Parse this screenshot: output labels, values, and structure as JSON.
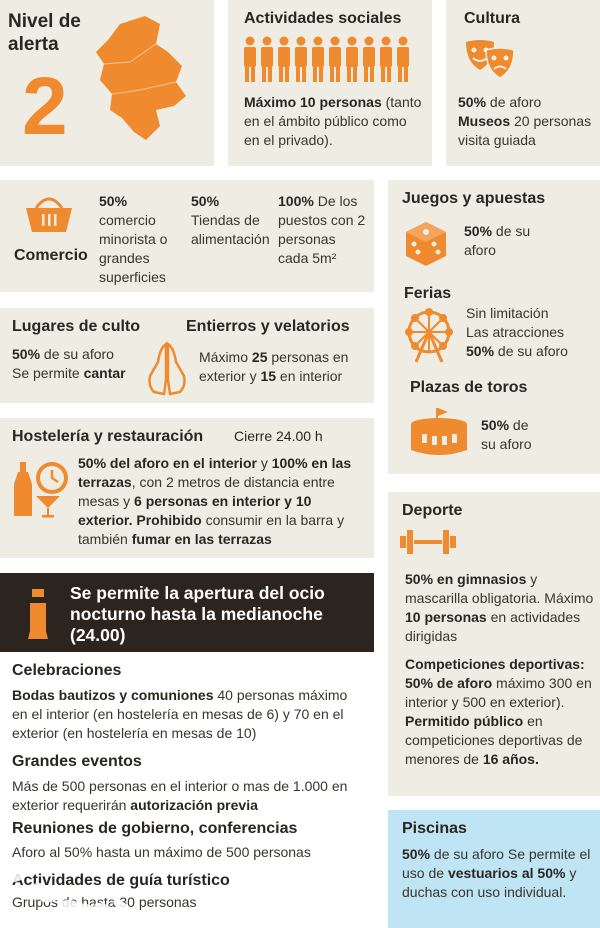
{
  "alerta": {
    "title": "Nivel de alerta",
    "level": "2"
  },
  "actividades": {
    "title": "Actividades sociales",
    "bold": "Máximo 10 personas",
    "text": "(tanto en el ámbito público como en el privado)."
  },
  "cultura": {
    "title": "Cultura",
    "aforo_bold": "50%",
    "aforo": " de aforo",
    "museos_bold": "Museos",
    "museos": " 20 personas visita guiada"
  },
  "comercio": {
    "label": "Comercio",
    "c1_bold": "50%",
    "c1": "comercio minorista o grandes superficies",
    "c2_bold": "50%",
    "c2": "Tiendas de alimentación",
    "c3_bold": "100%",
    "c3": " De los puestos con 2 personas cada 5m²"
  },
  "juegos": {
    "title": "Juegos y apuestas",
    "bold": "50%",
    "text": " de su aforo"
  },
  "ferias": {
    "title": "Ferias",
    "l1": "Sin limitación",
    "l2": "Las atracciones",
    "bold": "50%",
    "text": " de su aforo"
  },
  "toros": {
    "title": "Plazas de toros",
    "bold": "50%",
    "text": " de su aforo"
  },
  "culto": {
    "title": "Lugares de culto",
    "bold": "50%",
    "text": " de su aforo",
    "l2": "Se permite ",
    "l2_bold": "cantar"
  },
  "entierros": {
    "title": "Entierros y velatorios",
    "t1": "Máximo ",
    "b1": "25",
    "t2": " personas en exterior y ",
    "b2": "15",
    "t3": " en interior"
  },
  "hosteleria": {
    "title": "Hostelería y restauración",
    "cierre": "Cierre 24.00 h",
    "b1": "50% del aforo en el interior",
    "t1": " y ",
    "b2": "100% en las terrazas",
    "t2": ", con 2 metros de distancia entre mesas y ",
    "b3": "6 personas en interior y 10 exterior. Prohibido",
    "t3": " consumir en la barra y también ",
    "b4": "fumar en las terrazas"
  },
  "deporte": {
    "title": "Deporte",
    "b1": "50% en gimnasios",
    "t1": " y mascarilla obligatoria. Máximo ",
    "b2": "10 personas",
    "t2": " en actividades dirigidas",
    "b3": "Competiciones deportivas: 50% de aforo",
    "t3": " máximo 300 en interior y 500 en exterior). ",
    "b4": "Permitido público",
    "t4": " en competiciones deportivas de menores de ",
    "b5": "16 años."
  },
  "ocio": {
    "text": "Se permite la apertura del ocio nocturno hasta la medianoche (24.00)"
  },
  "celebraciones": {
    "title": "Celebraciones",
    "bold": "Bodas bautizos y comuniones",
    "text": " 40 personas máximo en el interior (en hostelería en mesas de 6) y 70 en el exterior (en hostelería en mesas de 10)"
  },
  "eventos": {
    "title": "Grandes eventos",
    "text": "Más de 500 personas en el interior o mas de 1.000 en exterior requerirán ",
    "bold": "autorización previa"
  },
  "reuniones": {
    "title": "Reuniones de gobierno, conferencias",
    "text": "Aforo al 50% hasta un máximo de 500 personas"
  },
  "guia": {
    "title": "Actividades de guía turístico",
    "text": "Grupos de hasta 30 personas"
  },
  "piscinas": {
    "title": "Piscinas",
    "b1": "50%",
    "t1": " de su aforo Se permite el uso de ",
    "b2": "vestuarios al 50%",
    "t2": " y duchas con uso individual."
  },
  "colors": {
    "accent": "#ef8a2e",
    "panel": "#efece4",
    "dark": "#2c241f",
    "pool": "#bfe4f4"
  }
}
